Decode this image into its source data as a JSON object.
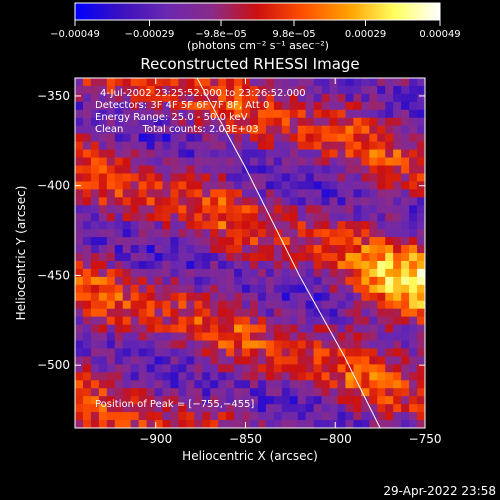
{
  "chart_data": {
    "type": "heatmap",
    "title": "Reconstructed RHESSI Image",
    "xlabel": "Heliocentric X (arcsec)",
    "ylabel": "Heliocentric Y (arcsec)",
    "xlim": [
      -945,
      -750
    ],
    "ylim": [
      -535,
      -340
    ],
    "x_ticks": [
      -900,
      -850,
      -800,
      -750
    ],
    "y_ticks": [
      -500,
      -450,
      -400,
      -350
    ],
    "x_tick_labels": [
      "−900",
      "−850",
      "−800",
      "−750"
    ],
    "y_tick_labels": [
      "−500",
      "−450",
      "−400",
      "−350"
    ],
    "colorbar": {
      "tick_values": [
        -0.00049,
        -0.00029,
        -9.8e-05,
        9.8e-05,
        0.00029,
        0.00049
      ],
      "tick_labels": [
        "−0.00049",
        "−0.00029",
        "−9.8e−05",
        "9.8e−05",
        "0.00029",
        "0.00049"
      ],
      "unit_label": "(photons cm⁻² s⁻¹ asec⁻²)",
      "range": [
        -0.00049,
        0.00049
      ],
      "colors": [
        "#0000ff",
        "#3a10c0",
        "#6a28b0",
        "#8a2a8a",
        "#cc1010",
        "#ff5000",
        "#ffa000",
        "#ffff60",
        "#ffffff"
      ]
    },
    "annotations": [
      "4-Jul-2002 23:25:52.000 to 23:26:52.000",
      "Detectors: 3F 4F 5F 6F 7F 8F, Att 0",
      "Energy Range: 25.0 - 50.0 keV",
      "Clean      Total counts: 2.03E+03"
    ],
    "peak_label": "Position of Peak = [−755,−455]",
    "peak_position": [
      -755,
      -455
    ],
    "limb_curve": [
      [
        -877,
        -340
      ],
      [
        -850,
        -390
      ],
      [
        -820,
        -450
      ],
      [
        -795,
        -495
      ],
      [
        -775,
        -535
      ]
    ]
  },
  "footer": {
    "timestamp": "29-Apr-2022 23:58"
  },
  "colors": {
    "background": "#000000",
    "foreground": "#ffffff"
  }
}
